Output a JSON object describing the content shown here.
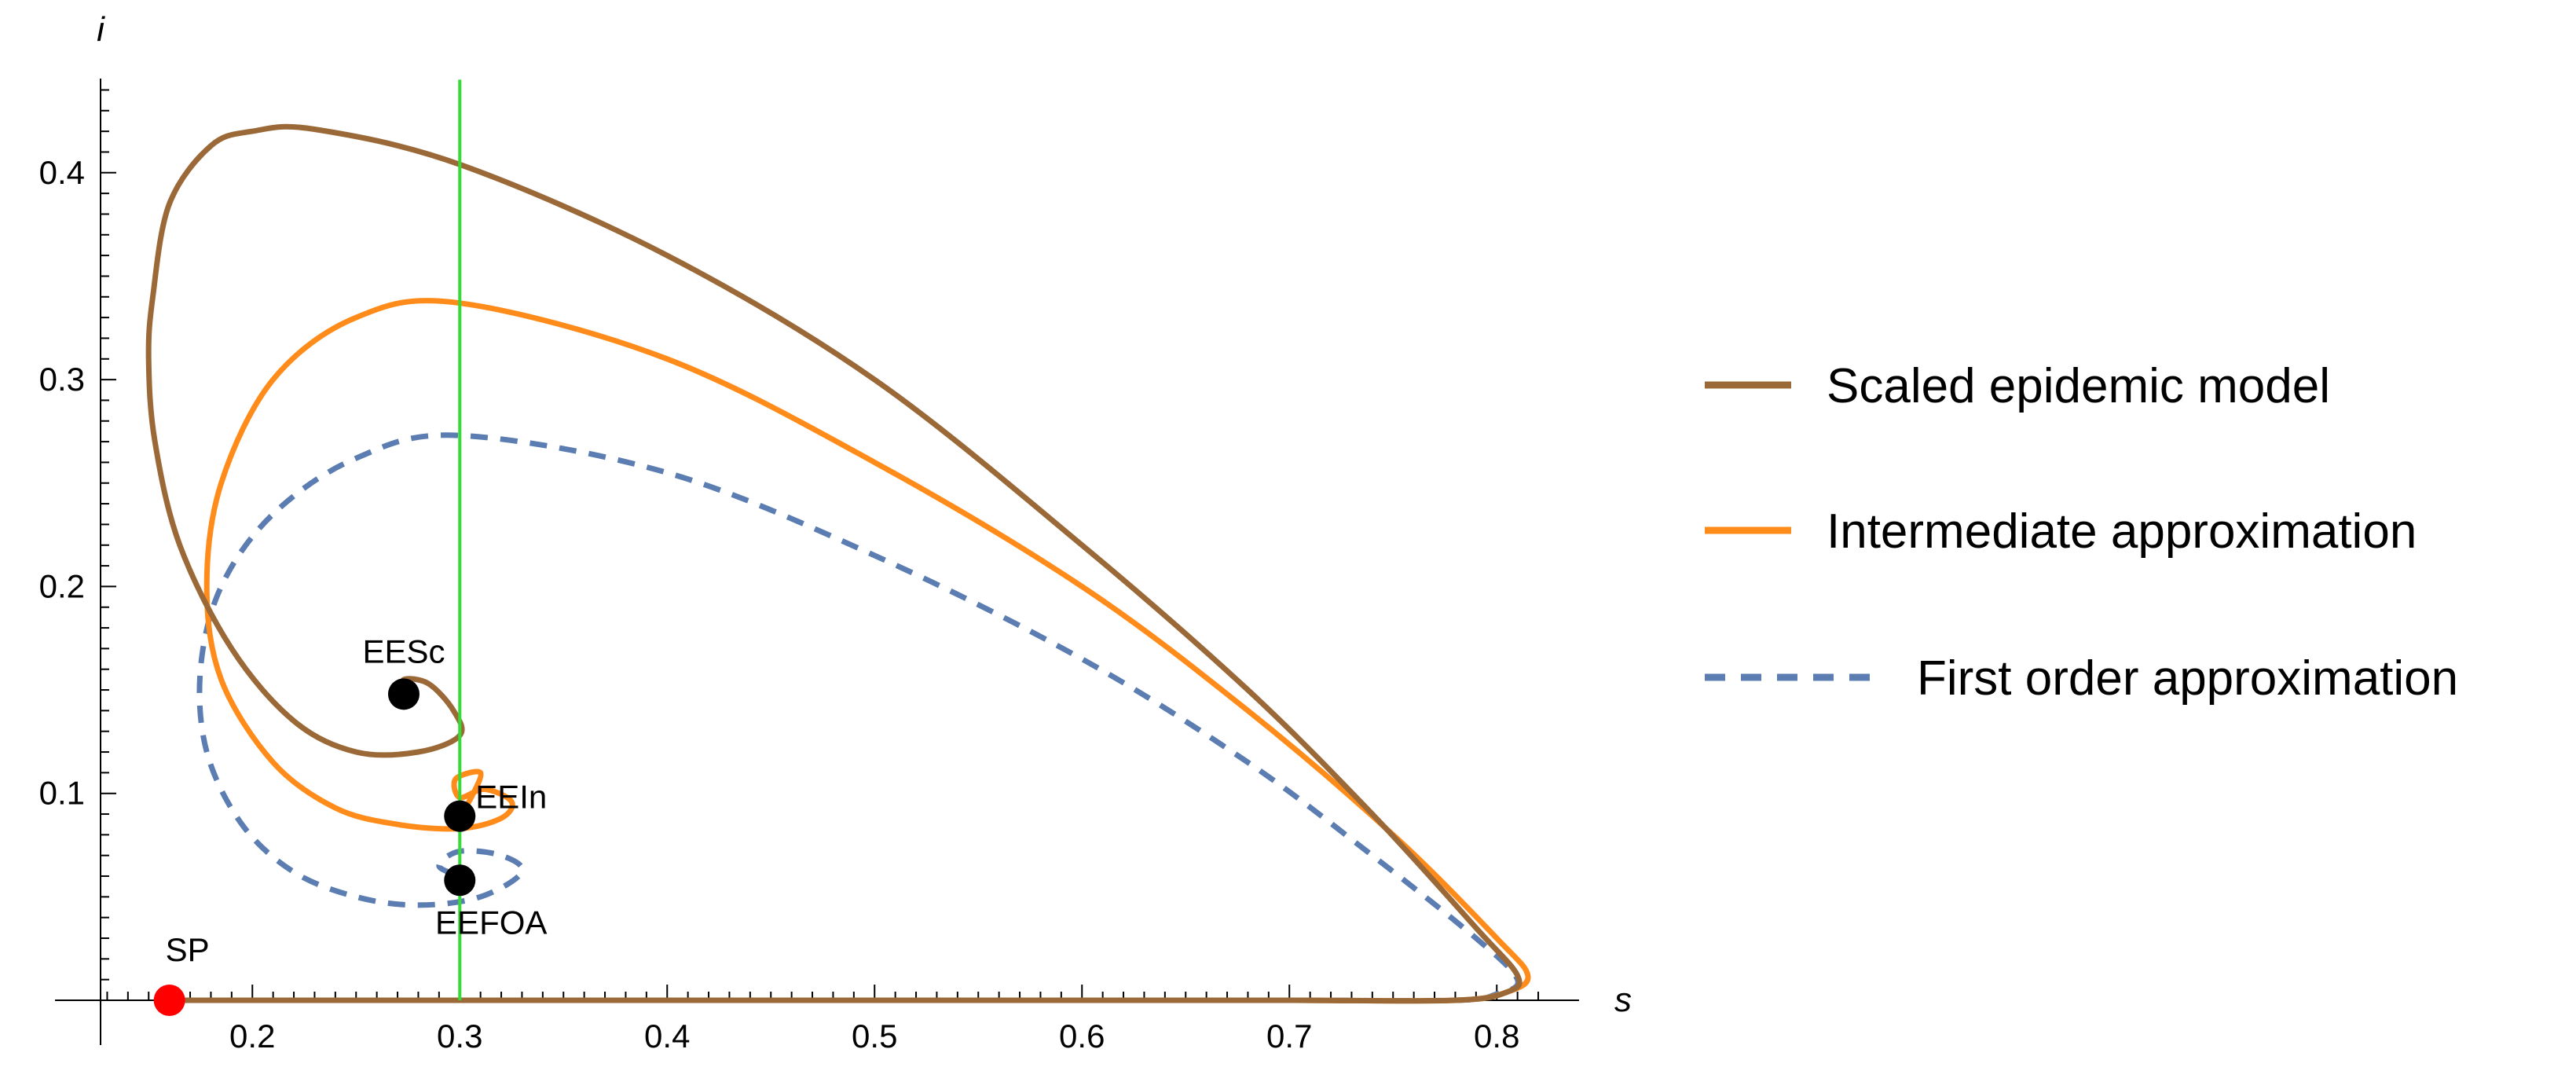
{
  "chart_data": {
    "type": "line",
    "title": "",
    "xlabel": "s",
    "ylabel": "i",
    "xlim": [
      0.12,
      0.83
    ],
    "ylim": [
      -0.02,
      0.45
    ],
    "grid": false,
    "legend_position": "right",
    "x_ticks": [
      0.2,
      0.3,
      0.4,
      0.5,
      0.6,
      0.7,
      0.8
    ],
    "x_tick_labels": [
      "0.2",
      "0.3",
      "0.4",
      "0.5",
      "0.6",
      "0.7",
      "0.8"
    ],
    "y_ticks": [
      0.1,
      0.2,
      0.3,
      0.4
    ],
    "y_tick_labels": [
      "0.1",
      "0.2",
      "0.3",
      "0.4"
    ],
    "vertical_line": {
      "x": 0.3,
      "y_range": [
        0.0,
        0.445
      ],
      "color": "#33dd33"
    },
    "series": [
      {
        "name": "Scaled epidemic model",
        "color": "#9b6938",
        "style": "solid",
        "points": [
          [
            0.16,
            0.0
          ],
          [
            0.4,
            0.0
          ],
          [
            0.6,
            0.0
          ],
          [
            0.7,
            0.0
          ],
          [
            0.78,
            0.0
          ],
          [
            0.805,
            0.004
          ],
          [
            0.81,
            0.012
          ],
          [
            0.79,
            0.035
          ],
          [
            0.74,
            0.09
          ],
          [
            0.68,
            0.15
          ],
          [
            0.6,
            0.22
          ],
          [
            0.5,
            0.3
          ],
          [
            0.4,
            0.36
          ],
          [
            0.3,
            0.404
          ],
          [
            0.23,
            0.421
          ],
          [
            0.2,
            0.42
          ],
          [
            0.18,
            0.413
          ],
          [
            0.16,
            0.385
          ],
          [
            0.152,
            0.34
          ],
          [
            0.15,
            0.31
          ],
          [
            0.153,
            0.27
          ],
          [
            0.165,
            0.22
          ],
          [
            0.19,
            0.17
          ],
          [
            0.22,
            0.135
          ],
          [
            0.25,
            0.12
          ],
          [
            0.28,
            0.12
          ],
          [
            0.3,
            0.128
          ],
          [
            0.297,
            0.14
          ],
          [
            0.285,
            0.153
          ],
          [
            0.273,
            0.155
          ],
          [
            0.275,
            0.148
          ]
        ]
      },
      {
        "name": "Intermediate approximation",
        "color": "#ff8c1a",
        "style": "solid",
        "points": [
          [
            0.16,
            0.0
          ],
          [
            0.4,
            0.0
          ],
          [
            0.6,
            0.0
          ],
          [
            0.7,
            0.0
          ],
          [
            0.78,
            0.0
          ],
          [
            0.805,
            0.004
          ],
          [
            0.815,
            0.012
          ],
          [
            0.8,
            0.03
          ],
          [
            0.75,
            0.08
          ],
          [
            0.68,
            0.14
          ],
          [
            0.6,
            0.2
          ],
          [
            0.5,
            0.26
          ],
          [
            0.4,
            0.31
          ],
          [
            0.3,
            0.337
          ],
          [
            0.25,
            0.33
          ],
          [
            0.21,
            0.3
          ],
          [
            0.185,
            0.25
          ],
          [
            0.178,
            0.2
          ],
          [
            0.185,
            0.155
          ],
          [
            0.21,
            0.115
          ],
          [
            0.24,
            0.093
          ],
          [
            0.27,
            0.085
          ],
          [
            0.3,
            0.083
          ],
          [
            0.32,
            0.088
          ],
          [
            0.325,
            0.096
          ],
          [
            0.312,
            0.102
          ],
          [
            0.3,
            0.098
          ],
          [
            0.298,
            0.107
          ],
          [
            0.31,
            0.11
          ],
          [
            0.305,
            0.097
          ],
          [
            0.3,
            0.09
          ]
        ]
      },
      {
        "name": "First order approximation",
        "color": "#5b7db1",
        "style": "dashed",
        "points": [
          [
            0.16,
            0.0
          ],
          [
            0.4,
            0.0
          ],
          [
            0.6,
            0.0
          ],
          [
            0.7,
            0.0
          ],
          [
            0.78,
            0.0
          ],
          [
            0.8,
            0.003
          ],
          [
            0.81,
            0.01
          ],
          [
            0.79,
            0.03
          ],
          [
            0.74,
            0.07
          ],
          [
            0.68,
            0.115
          ],
          [
            0.6,
            0.165
          ],
          [
            0.5,
            0.215
          ],
          [
            0.4,
            0.255
          ],
          [
            0.3,
            0.273
          ],
          [
            0.25,
            0.262
          ],
          [
            0.21,
            0.235
          ],
          [
            0.185,
            0.2
          ],
          [
            0.175,
            0.16
          ],
          [
            0.178,
            0.12
          ],
          [
            0.195,
            0.085
          ],
          [
            0.22,
            0.062
          ],
          [
            0.25,
            0.05
          ],
          [
            0.28,
            0.046
          ],
          [
            0.31,
            0.05
          ],
          [
            0.33,
            0.062
          ],
          [
            0.32,
            0.07
          ],
          [
            0.3,
            0.072
          ],
          [
            0.29,
            0.065
          ],
          [
            0.3,
            0.06
          ]
        ]
      }
    ],
    "points": [
      {
        "label": "SP",
        "x": 0.16,
        "y": 0.0,
        "color": "#ff0000"
      },
      {
        "label": "EESc",
        "x": 0.273,
        "y": 0.148,
        "color": "#000000"
      },
      {
        "label": "EEIn",
        "x": 0.3,
        "y": 0.089,
        "color": "#000000"
      },
      {
        "label": "EEFOA",
        "x": 0.3,
        "y": 0.058,
        "color": "#000000"
      }
    ]
  }
}
